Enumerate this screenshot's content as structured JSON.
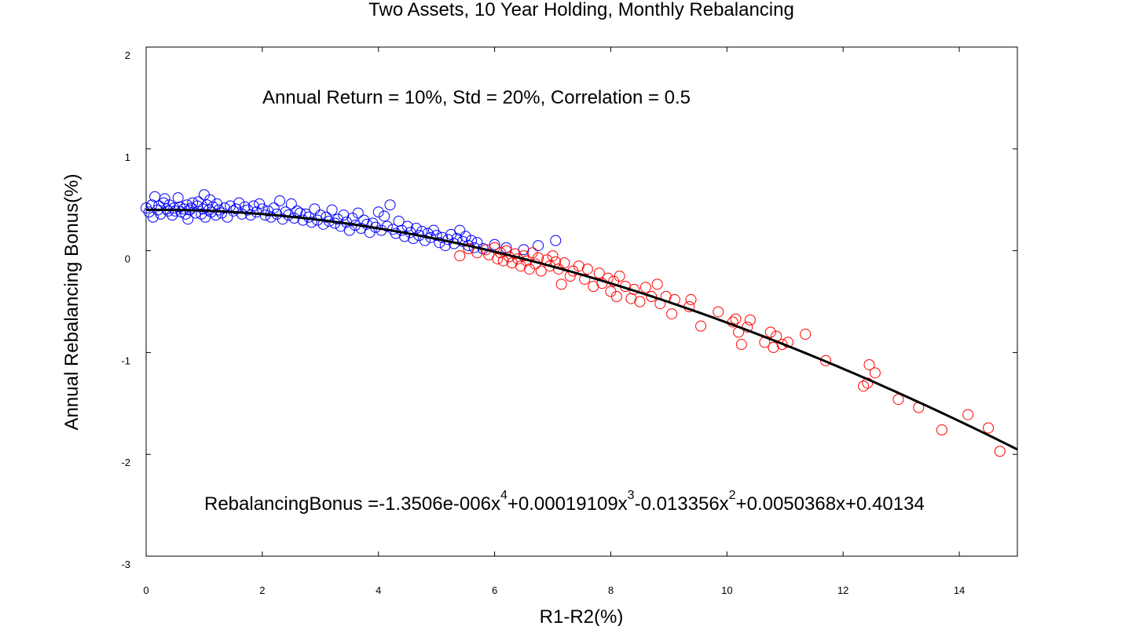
{
  "chart_data": {
    "type": "scatter",
    "title": "Two Assets, 10 Year Holding, Monthly Rebalancing",
    "xlabel": "R1-R2(%)",
    "ylabel": "Annual Rebalancing Bonus(%)",
    "xlim": [
      0,
      15
    ],
    "ylim": [
      -3,
      2
    ],
    "xticks": [
      "0",
      "2",
      "4",
      "6",
      "8",
      "10",
      "12",
      "14"
    ],
    "yticks": [
      "2",
      "1",
      "0",
      "-1",
      "-2",
      "-3"
    ],
    "grid": false,
    "annotations": {
      "params": "Annual Return = 10%, Std = 20%, Correlation = 0.5",
      "eq_prefix": "RebalancingBonus =-1.3506e-006x",
      "eq_exp4": "4",
      "eq_mid1": "+0.00019109x",
      "eq_exp3": "3",
      "eq_mid2": "-0.013356x",
      "eq_exp2": "2",
      "eq_suffix": "+0.0050368x+0.40134"
    },
    "fit": {
      "name": "",
      "color": "#000000",
      "coefficients": [
        -1.3506e-06,
        0.00019109,
        -0.013356,
        0.0050368,
        0.40134
      ],
      "x_range": [
        0,
        15
      ]
    },
    "series": [
      {
        "name": "",
        "color": "#0000ff",
        "marker": "open-circle",
        "points": [
          [
            0.0,
            0.42
          ],
          [
            0.05,
            0.38
          ],
          [
            0.1,
            0.45
          ],
          [
            0.12,
            0.33
          ],
          [
            0.15,
            0.53
          ],
          [
            0.2,
            0.4
          ],
          [
            0.22,
            0.44
          ],
          [
            0.25,
            0.36
          ],
          [
            0.3,
            0.47
          ],
          [
            0.32,
            0.51
          ],
          [
            0.35,
            0.41
          ],
          [
            0.38,
            0.39
          ],
          [
            0.4,
            0.45
          ],
          [
            0.45,
            0.35
          ],
          [
            0.48,
            0.42
          ],
          [
            0.5,
            0.39
          ],
          [
            0.55,
            0.52
          ],
          [
            0.58,
            0.43
          ],
          [
            0.6,
            0.38
          ],
          [
            0.65,
            0.41
          ],
          [
            0.68,
            0.36
          ],
          [
            0.7,
            0.45
          ],
          [
            0.72,
            0.31
          ],
          [
            0.75,
            0.4
          ],
          [
            0.78,
            0.42
          ],
          [
            0.8,
            0.47
          ],
          [
            0.85,
            0.37
          ],
          [
            0.88,
            0.44
          ],
          [
            0.9,
            0.48
          ],
          [
            0.95,
            0.36
          ],
          [
            0.98,
            0.41
          ],
          [
            1.0,
            0.55
          ],
          [
            1.02,
            0.33
          ],
          [
            1.05,
            0.45
          ],
          [
            1.08,
            0.4
          ],
          [
            1.1,
            0.5
          ],
          [
            1.12,
            0.38
          ],
          [
            1.15,
            0.43
          ],
          [
            1.2,
            0.35
          ],
          [
            1.22,
            0.46
          ],
          [
            1.25,
            0.4
          ],
          [
            1.3,
            0.37
          ],
          [
            1.35,
            0.42
          ],
          [
            1.4,
            0.33
          ],
          [
            1.45,
            0.44
          ],
          [
            1.5,
            0.39
          ],
          [
            1.55,
            0.41
          ],
          [
            1.6,
            0.47
          ],
          [
            1.65,
            0.36
          ],
          [
            1.7,
            0.43
          ],
          [
            1.75,
            0.4
          ],
          [
            1.8,
            0.35
          ],
          [
            1.85,
            0.44
          ],
          [
            1.9,
            0.38
          ],
          [
            1.95,
            0.46
          ],
          [
            2.0,
            0.41
          ],
          [
            2.05,
            0.35
          ],
          [
            2.1,
            0.39
          ],
          [
            2.15,
            0.33
          ],
          [
            2.2,
            0.42
          ],
          [
            2.25,
            0.36
          ],
          [
            2.3,
            0.49
          ],
          [
            2.35,
            0.31
          ],
          [
            2.4,
            0.38
          ],
          [
            2.45,
            0.35
          ],
          [
            2.5,
            0.46
          ],
          [
            2.55,
            0.32
          ],
          [
            2.6,
            0.39
          ],
          [
            2.65,
            0.37
          ],
          [
            2.7,
            0.3
          ],
          [
            2.75,
            0.36
          ],
          [
            2.8,
            0.33
          ],
          [
            2.85,
            0.28
          ],
          [
            2.9,
            0.41
          ],
          [
            2.95,
            0.3
          ],
          [
            3.0,
            0.35
          ],
          [
            3.05,
            0.26
          ],
          [
            3.1,
            0.33
          ],
          [
            3.15,
            0.29
          ],
          [
            3.2,
            0.4
          ],
          [
            3.25,
            0.27
          ],
          [
            3.3,
            0.31
          ],
          [
            3.35,
            0.24
          ],
          [
            3.4,
            0.35
          ],
          [
            3.45,
            0.28
          ],
          [
            3.5,
            0.2
          ],
          [
            3.55,
            0.32
          ],
          [
            3.6,
            0.25
          ],
          [
            3.65,
            0.37
          ],
          [
            3.7,
            0.22
          ],
          [
            3.75,
            0.3
          ],
          [
            3.8,
            0.26
          ],
          [
            3.85,
            0.18
          ],
          [
            3.9,
            0.27
          ],
          [
            3.95,
            0.23
          ],
          [
            4.0,
            0.38
          ],
          [
            4.05,
            0.2
          ],
          [
            4.1,
            0.34
          ],
          [
            4.15,
            0.24
          ],
          [
            4.2,
            0.45
          ],
          [
            4.25,
            0.21
          ],
          [
            4.3,
            0.17
          ],
          [
            4.35,
            0.29
          ],
          [
            4.4,
            0.2
          ],
          [
            4.45,
            0.14
          ],
          [
            4.5,
            0.24
          ],
          [
            4.55,
            0.18
          ],
          [
            4.6,
            0.12
          ],
          [
            4.65,
            0.22
          ],
          [
            4.7,
            0.15
          ],
          [
            4.75,
            0.19
          ],
          [
            4.8,
            0.1
          ],
          [
            4.85,
            0.17
          ],
          [
            4.9,
            0.13
          ],
          [
            4.95,
            0.2
          ],
          [
            5.0,
            0.15
          ],
          [
            5.05,
            0.08
          ],
          [
            5.1,
            0.13
          ],
          [
            5.15,
            0.05
          ],
          [
            5.2,
            0.11
          ],
          [
            5.25,
            0.16
          ],
          [
            5.3,
            0.07
          ],
          [
            5.35,
            0.12
          ],
          [
            5.4,
            0.2
          ],
          [
            5.45,
            0.09
          ],
          [
            5.5,
            0.14
          ],
          [
            5.55,
            0.05
          ],
          [
            5.6,
            0.1
          ],
          [
            5.65,
            0.03
          ],
          [
            5.7,
            0.08
          ],
          [
            5.8,
            0.02
          ],
          [
            6.0,
            0.06
          ],
          [
            6.2,
            0.03
          ],
          [
            6.5,
            0.01
          ],
          [
            6.75,
            0.05
          ],
          [
            7.05,
            0.1
          ]
        ]
      },
      {
        "name": "",
        "color": "#ff0000",
        "marker": "open-circle",
        "points": [
          [
            5.4,
            -0.05
          ],
          [
            5.55,
            0.02
          ],
          [
            5.7,
            -0.02
          ],
          [
            5.85,
            0.01
          ],
          [
            5.9,
            -0.04
          ],
          [
            6.0,
            0.03
          ],
          [
            6.05,
            -0.08
          ],
          [
            6.1,
            -0.02
          ],
          [
            6.15,
            -0.1
          ],
          [
            6.2,
            0.0
          ],
          [
            6.25,
            -0.06
          ],
          [
            6.3,
            -0.12
          ],
          [
            6.35,
            -0.03
          ],
          [
            6.4,
            -0.08
          ],
          [
            6.45,
            -0.15
          ],
          [
            6.5,
            -0.05
          ],
          [
            6.55,
            -0.1
          ],
          [
            6.6,
            -0.18
          ],
          [
            6.65,
            -0.02
          ],
          [
            6.7,
            -0.13
          ],
          [
            6.75,
            -0.07
          ],
          [
            6.8,
            -0.2
          ],
          [
            6.9,
            -0.09
          ],
          [
            6.95,
            -0.15
          ],
          [
            7.0,
            -0.05
          ],
          [
            7.05,
            -0.11
          ],
          [
            7.1,
            -0.18
          ],
          [
            7.15,
            -0.33
          ],
          [
            7.2,
            -0.12
          ],
          [
            7.3,
            -0.25
          ],
          [
            7.35,
            -0.2
          ],
          [
            7.45,
            -0.15
          ],
          [
            7.55,
            -0.28
          ],
          [
            7.6,
            -0.18
          ],
          [
            7.7,
            -0.35
          ],
          [
            7.8,
            -0.22
          ],
          [
            7.85,
            -0.32
          ],
          [
            7.95,
            -0.27
          ],
          [
            8.0,
            -0.4
          ],
          [
            8.05,
            -0.3
          ],
          [
            8.1,
            -0.45
          ],
          [
            8.15,
            -0.25
          ],
          [
            8.25,
            -0.35
          ],
          [
            8.35,
            -0.47
          ],
          [
            8.4,
            -0.38
          ],
          [
            8.5,
            -0.5
          ],
          [
            8.6,
            -0.36
          ],
          [
            8.7,
            -0.45
          ],
          [
            8.8,
            -0.33
          ],
          [
            8.85,
            -0.52
          ],
          [
            8.95,
            -0.45
          ],
          [
            9.05,
            -0.62
          ],
          [
            9.1,
            -0.48
          ],
          [
            9.35,
            -0.55
          ],
          [
            9.38,
            -0.48
          ],
          [
            9.55,
            -0.74
          ],
          [
            9.85,
            -0.6
          ],
          [
            10.1,
            -0.7
          ],
          [
            10.15,
            -0.67
          ],
          [
            10.2,
            -0.8
          ],
          [
            10.25,
            -0.92
          ],
          [
            10.35,
            -0.75
          ],
          [
            10.4,
            -0.68
          ],
          [
            10.65,
            -0.9
          ],
          [
            10.75,
            -0.8
          ],
          [
            10.8,
            -0.95
          ],
          [
            10.85,
            -0.84
          ],
          [
            10.95,
            -0.92
          ],
          [
            11.05,
            -0.9
          ],
          [
            11.35,
            -0.82
          ],
          [
            11.7,
            -1.08
          ],
          [
            12.35,
            -1.33
          ],
          [
            12.42,
            -1.3
          ],
          [
            12.45,
            -1.12
          ],
          [
            12.55,
            -1.2
          ],
          [
            12.95,
            -1.46
          ],
          [
            13.3,
            -1.54
          ],
          [
            13.7,
            -1.76
          ],
          [
            14.15,
            -1.61
          ],
          [
            14.5,
            -1.74
          ],
          [
            14.7,
            -1.97
          ]
        ]
      }
    ]
  }
}
